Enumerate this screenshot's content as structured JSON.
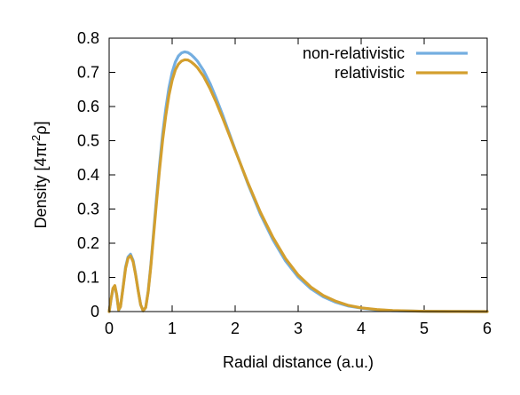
{
  "chart_data": {
    "type": "line",
    "xlabel": "Radial distance (a.u.)",
    "ylabel": {
      "text_before": "Density [4",
      "pi": "π",
      "r": "r",
      "exponent": "2",
      "rho": "ρ",
      "close": "]"
    },
    "xlim": [
      0,
      6
    ],
    "ylim": [
      0,
      0.8
    ],
    "x_ticks": [
      "0",
      "1",
      "2",
      "3",
      "4",
      "5",
      "6"
    ],
    "y_ticks": [
      "0",
      "0.1",
      "0.2",
      "0.3",
      "0.4",
      "0.5",
      "0.6",
      "0.7",
      "0.8"
    ],
    "grid": false,
    "legend_position": "top-right",
    "series": [
      {
        "name": "non-relativistic",
        "color": "#74aee0",
        "x": [
          0,
          0.03,
          0.06,
          0.09,
          0.12,
          0.15,
          0.18,
          0.22,
          0.26,
          0.3,
          0.34,
          0.38,
          0.42,
          0.46,
          0.5,
          0.54,
          0.58,
          0.62,
          0.66,
          0.7,
          0.75,
          0.8,
          0.85,
          0.9,
          0.95,
          1.0,
          1.05,
          1.1,
          1.15,
          1.2,
          1.25,
          1.3,
          1.35,
          1.4,
          1.5,
          1.6,
          1.7,
          1.8,
          1.9,
          2.0,
          2.2,
          2.4,
          2.6,
          2.8,
          3.0,
          3.2,
          3.4,
          3.6,
          3.8,
          4.0,
          4.25,
          4.5,
          5.0,
          5.5,
          6.0
        ],
        "y": [
          0,
          0.035,
          0.066,
          0.075,
          0.048,
          0.004,
          0.015,
          0.07,
          0.13,
          0.16,
          0.168,
          0.15,
          0.11,
          0.062,
          0.02,
          0.002,
          0.012,
          0.06,
          0.135,
          0.22,
          0.33,
          0.43,
          0.52,
          0.595,
          0.655,
          0.7,
          0.73,
          0.748,
          0.757,
          0.76,
          0.758,
          0.752,
          0.743,
          0.733,
          0.705,
          0.668,
          0.624,
          0.576,
          0.525,
          0.474,
          0.375,
          0.285,
          0.21,
          0.148,
          0.101,
          0.067,
          0.043,
          0.027,
          0.016,
          0.01,
          0.005,
          0.0025,
          0.0007,
          0.0002,
          0
        ]
      },
      {
        "name": "relativistic",
        "color": "#d39f2e",
        "x": [
          0,
          0.03,
          0.06,
          0.09,
          0.12,
          0.15,
          0.18,
          0.22,
          0.26,
          0.3,
          0.34,
          0.38,
          0.42,
          0.46,
          0.5,
          0.54,
          0.58,
          0.62,
          0.66,
          0.7,
          0.75,
          0.8,
          0.85,
          0.9,
          0.95,
          1.0,
          1.05,
          1.1,
          1.15,
          1.2,
          1.25,
          1.3,
          1.35,
          1.4,
          1.5,
          1.6,
          1.7,
          1.8,
          1.9,
          2.0,
          2.2,
          2.4,
          2.6,
          2.8,
          3.0,
          3.2,
          3.4,
          3.6,
          3.8,
          4.0,
          4.25,
          4.5,
          5.0,
          5.5,
          6.0
        ],
        "y": [
          0,
          0.036,
          0.068,
          0.076,
          0.05,
          0.005,
          0.014,
          0.068,
          0.126,
          0.156,
          0.163,
          0.146,
          0.108,
          0.061,
          0.02,
          0.002,
          0.012,
          0.058,
          0.13,
          0.212,
          0.318,
          0.415,
          0.502,
          0.575,
          0.633,
          0.677,
          0.707,
          0.724,
          0.733,
          0.737,
          0.736,
          0.731,
          0.723,
          0.714,
          0.688,
          0.653,
          0.612,
          0.567,
          0.52,
          0.472,
          0.378,
          0.291,
          0.217,
          0.155,
          0.107,
          0.072,
          0.047,
          0.03,
          0.018,
          0.011,
          0.006,
          0.003,
          0.0008,
          0.0002,
          0
        ]
      }
    ]
  }
}
